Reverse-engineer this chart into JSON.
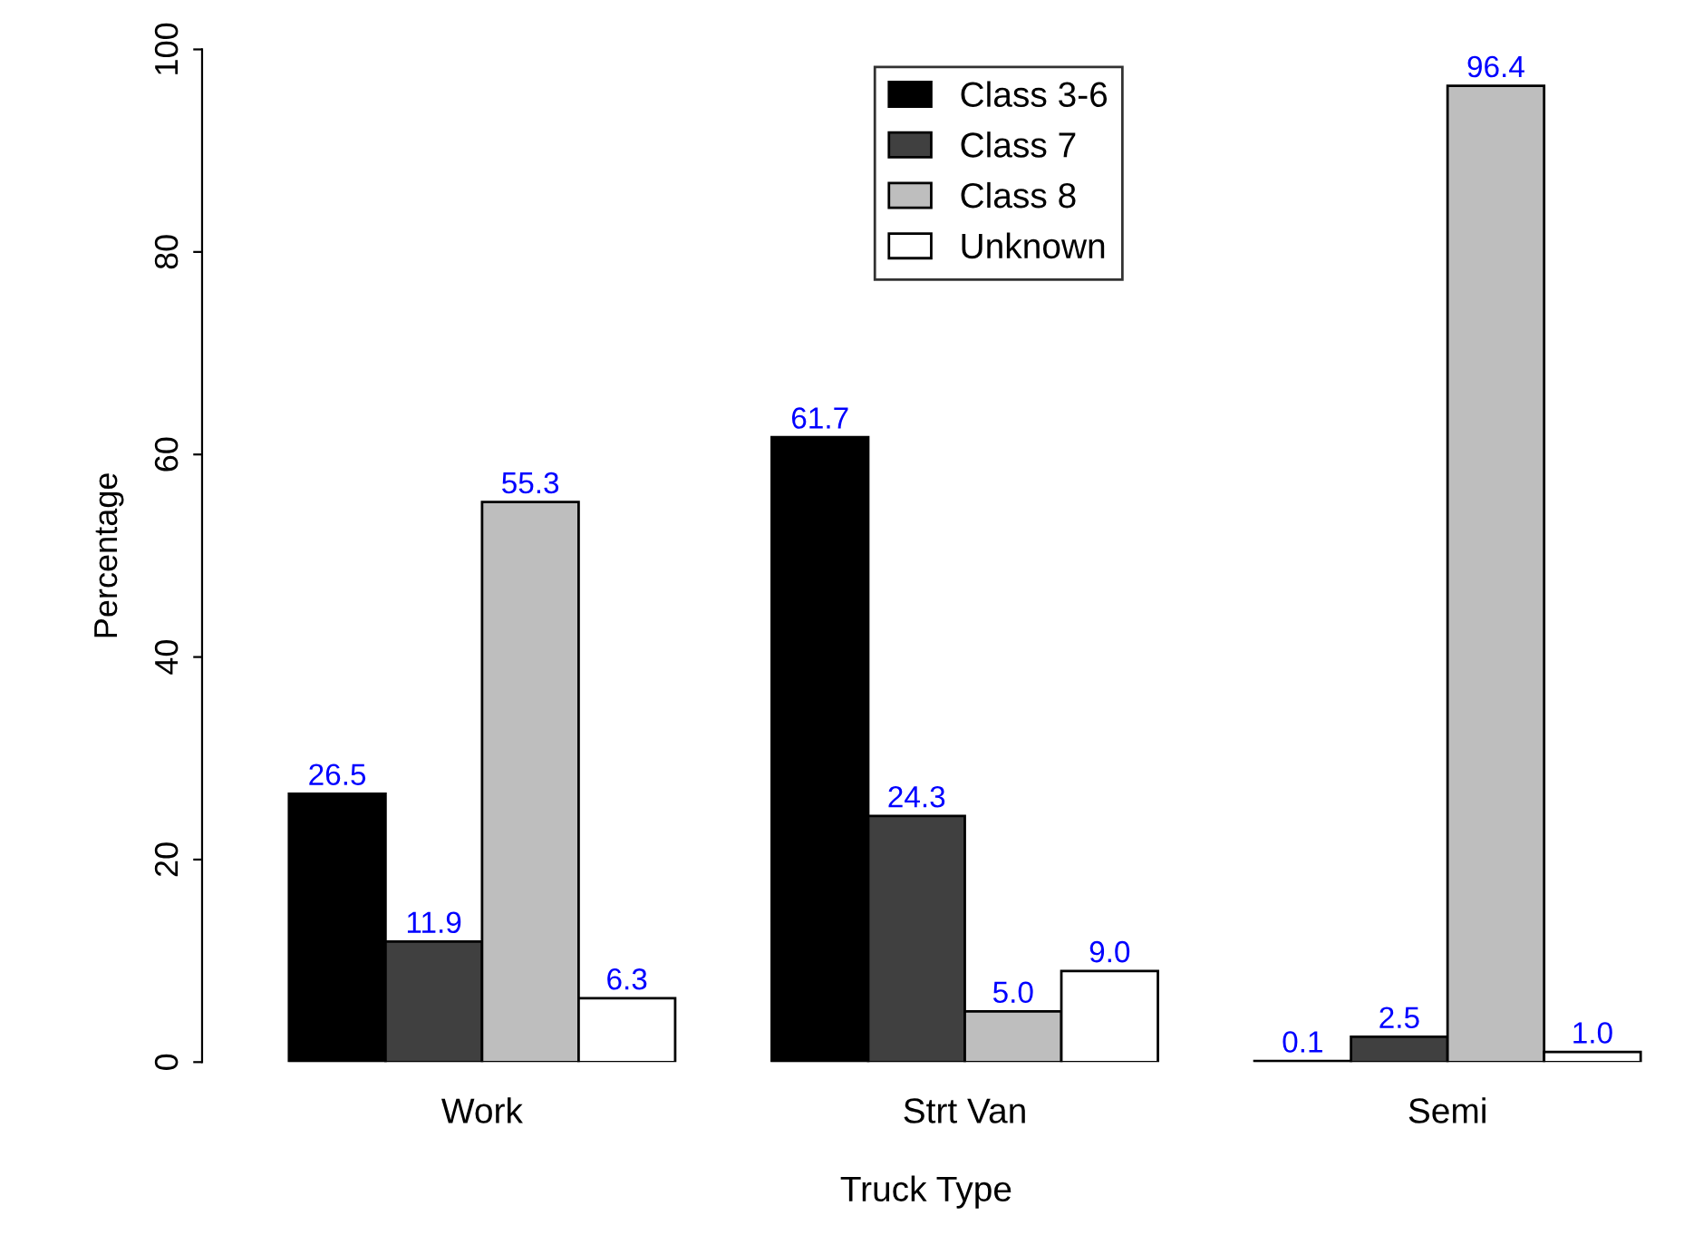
{
  "chart_data": {
    "type": "bar",
    "xlabel": "Truck Type",
    "ylabel": "Percentage",
    "categories": [
      "Work",
      "Strt Van",
      "Semi"
    ],
    "series": [
      {
        "name": "Class 3-6",
        "color": "#000000",
        "values": [
          26.5,
          61.7,
          0.1
        ],
        "value_labels": [
          "26.5",
          "61.7",
          "0.1"
        ]
      },
      {
        "name": "Class 7",
        "color": "#404040",
        "values": [
          11.9,
          24.3,
          2.5
        ],
        "value_labels": [
          "11.9",
          "24.3",
          "2.5"
        ]
      },
      {
        "name": "Class 8",
        "color": "#bebebe",
        "values": [
          55.3,
          5.0,
          96.4
        ],
        "value_labels": [
          "55.3",
          "5.0",
          "96.4"
        ]
      },
      {
        "name": "Unknown",
        "color": "#ffffff",
        "values": [
          6.3,
          9.0,
          1.0
        ],
        "value_labels": [
          "6.3",
          "9.0",
          "1.0"
        ]
      }
    ],
    "ylim": [
      0,
      100
    ],
    "yticks": [
      0,
      20,
      40,
      60,
      80,
      100
    ],
    "grid": false,
    "legend": "top"
  }
}
